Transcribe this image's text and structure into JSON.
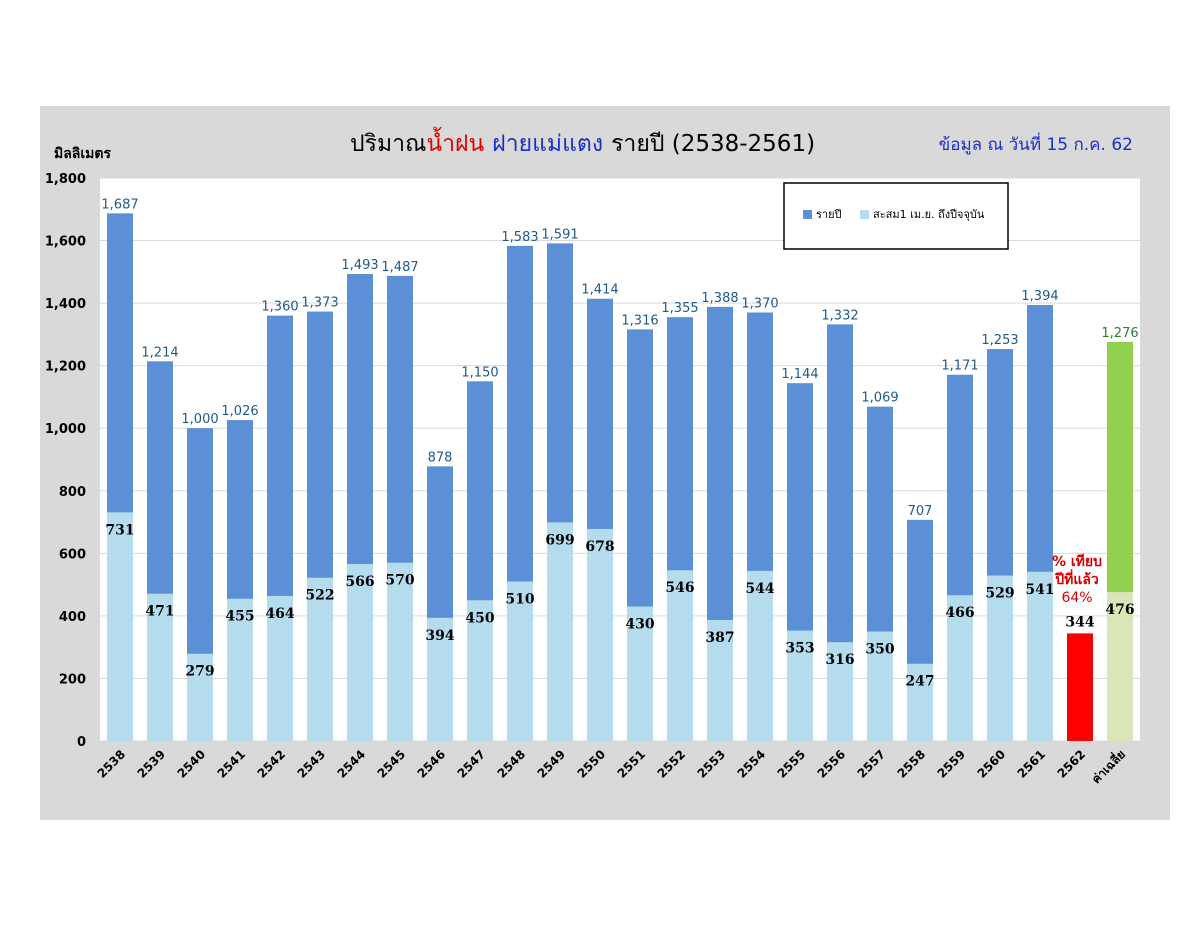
{
  "chart_data": {
    "type": "bar",
    "title": {
      "part1": "ปริมาณ",
      "part2": "น้ำฝน",
      "part3": "ฝายแม่แตง",
      "part4": "รายปี  (2538-2561)"
    },
    "note": "ข้อมูล ณ วันที่ 15 ก.ค. 62",
    "ylabel": "มิลลิเมตร",
    "ylim": [
      0,
      1800
    ],
    "yticks": [
      "0",
      "200",
      "400",
      "600",
      "800",
      "1,000",
      "1,200",
      "1,400",
      "1,600",
      "1,800"
    ],
    "grid": true,
    "legend_position": "top-right",
    "categories": [
      "2538",
      "2539",
      "2540",
      "2541",
      "2542",
      "2543",
      "2544",
      "2545",
      "2546",
      "2547",
      "2548",
      "2549",
      "2550",
      "2551",
      "2552",
      "2553",
      "2554",
      "2555",
      "2556",
      "2557",
      "2558",
      "2559",
      "2560",
      "2561",
      "2562",
      "ค่าเฉลี่ย"
    ],
    "series": [
      {
        "name": "รายปี",
        "color": "#5b8fd6",
        "values": [
          1687,
          1214,
          1000,
          1026,
          1360,
          1373,
          1493,
          1487,
          878,
          1150,
          1583,
          1591,
          1414,
          1316,
          1355,
          1388,
          1370,
          1144,
          1332,
          1069,
          707,
          1171,
          1253,
          1394,
          null,
          1276
        ],
        "labels": [
          "1,687",
          "1,214",
          "1,000",
          "1,026",
          "1,360",
          "1,373",
          "1,493",
          "1,487",
          "878",
          "1,150",
          "1,583",
          "1,591",
          "1,414",
          "1,316",
          "1,355",
          "1,388",
          "1,370",
          "1,144",
          "1,332",
          "1,069",
          "707",
          "1,171",
          "1,253",
          "1,394",
          "",
          "1,276"
        ]
      },
      {
        "name": "สะสม1 เม.ย. ถึงปีจจุบัน",
        "color": "#b4dced",
        "values": [
          731,
          471,
          279,
          455,
          464,
          522,
          566,
          570,
          394,
          450,
          510,
          699,
          678,
          430,
          546,
          387,
          544,
          353,
          316,
          350,
          247,
          466,
          529,
          541,
          344,
          476
        ],
        "labels": [
          "731",
          "471",
          "279",
          "455",
          "464",
          "522",
          "566",
          "570",
          "394",
          "450",
          "510",
          "699",
          "678",
          "430",
          "546",
          "387",
          "544",
          "353",
          "316",
          "350",
          "247",
          "466",
          "529",
          "541",
          "344",
          "476"
        ]
      }
    ],
    "highlight_colors": {
      "current_year": "#ff0000",
      "average_total": "#92d050",
      "average_cumulative": "#d9e7b8",
      "total_label": "#1f5a8a",
      "average_label": "#2e7d32"
    },
    "annotation": {
      "line1": "% เทียบ",
      "line2": "ปีที่แล้ว",
      "line3": "64%",
      "color": "#d40000"
    }
  }
}
